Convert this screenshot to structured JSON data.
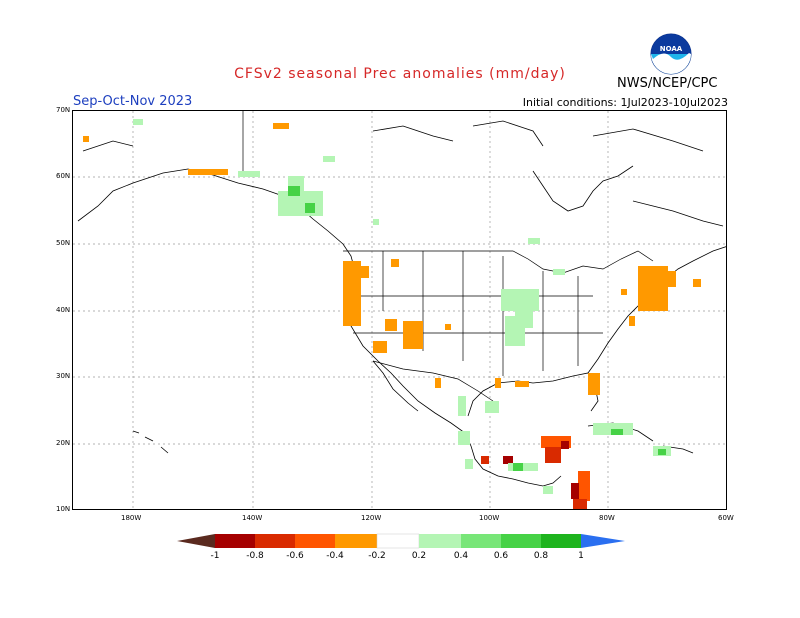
{
  "title": "CFSv2 seasonal Prec anomalies (mm/day)",
  "season": "Sep-Oct-Nov 2023",
  "initial_conditions": "Initial conditions: 1Jul2023-10Jul2023",
  "organization": "NWS/NCEP/CPC",
  "logo_text": "NOAA",
  "lat_labels": [
    "70N",
    "60N",
    "50N",
    "40N",
    "30N",
    "20N",
    "10N"
  ],
  "lon_labels": [
    "180W",
    "140W",
    "120W",
    "100W",
    "80W",
    "60W"
  ],
  "colorbar": {
    "labels": [
      "-1",
      "-0.8",
      "-0.6",
      "-0.4",
      "-0.2",
      "0.2",
      "0.4",
      "0.6",
      "0.8",
      "1"
    ],
    "colors": [
      "#5a2a1f",
      "#a50000",
      "#d92a00",
      "#ff5500",
      "#ff9900",
      "#ffffff",
      "#b4f5b4",
      "#78e678",
      "#46d246",
      "#1eb41e",
      "#119a11",
      "#2a6ff0"
    ]
  },
  "colors": {
    "title": "#d62828",
    "season": "#1d3fbf",
    "dry_light": "#ff9900",
    "dry_medium": "#ff5500",
    "dry_strong": "#d92a00",
    "dry_extreme": "#a50000",
    "wet_light": "#b4f5b4",
    "wet_medium": "#78e678",
    "wet_strong": "#46d246",
    "grid": "#9a9a9a"
  },
  "map_regions": [
    {
      "name": "alaska-west-dry",
      "value": -0.3
    },
    {
      "name": "alaska-south-dry",
      "value": -0.3
    },
    {
      "name": "bc-coast-wet",
      "value": 0.3
    },
    {
      "name": "california-dry",
      "value": -0.3
    },
    {
      "name": "southwest-dry",
      "value": -0.3
    },
    {
      "name": "south-plains-wet",
      "value": 0.3
    },
    {
      "name": "upper-midwest-wet",
      "value": 0.3
    },
    {
      "name": "new-england-dry",
      "value": -0.3
    },
    {
      "name": "florida-dry",
      "value": -0.3
    },
    {
      "name": "mexico-west-wet",
      "value": 0.3
    },
    {
      "name": "central-america-dry",
      "value": -0.7
    },
    {
      "name": "cuba-wet",
      "value": 0.3
    }
  ]
}
